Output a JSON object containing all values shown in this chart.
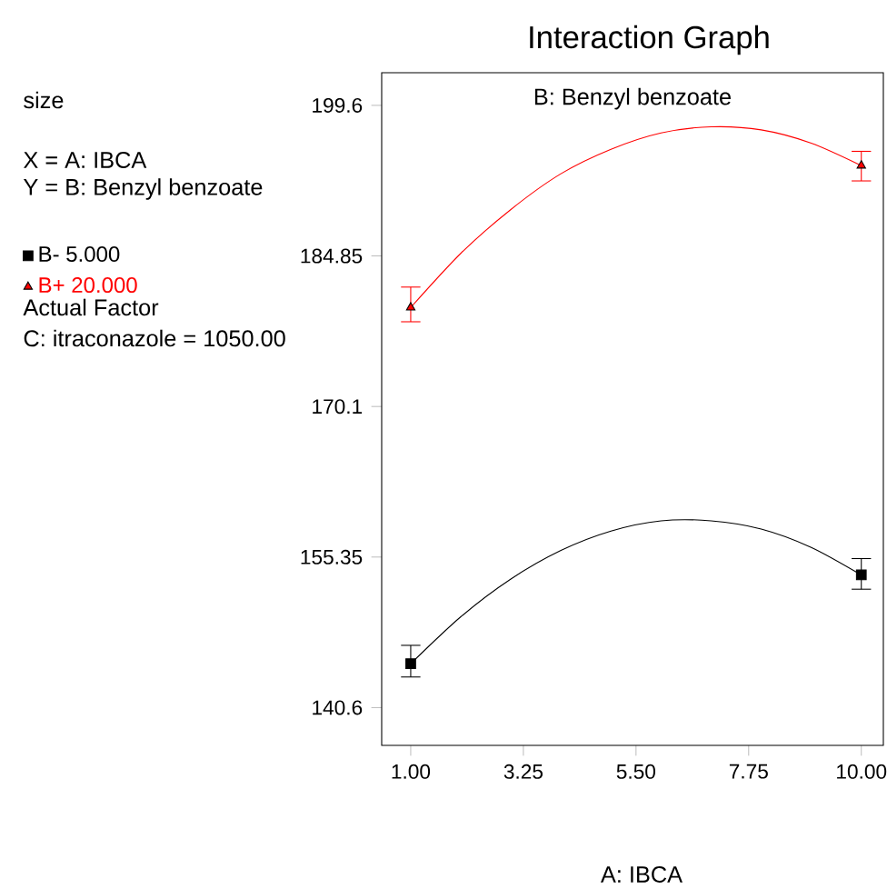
{
  "chart_data": {
    "type": "scatter",
    "title": "Interaction Graph",
    "subtitle": "B: Benzyl benzoate",
    "xlabel": "A: IBCA",
    "xlim": [
      0.42,
      10.44
    ],
    "ylim": [
      136.9,
      202.8
    ],
    "xticks": [
      {
        "value": 1,
        "label": "1.00"
      },
      {
        "value": 3.25,
        "label": "3.25"
      },
      {
        "value": 5.5,
        "label": "5.50"
      },
      {
        "value": 7.75,
        "label": "7.75"
      },
      {
        "value": 10,
        "label": "10.00"
      }
    ],
    "yticks": [
      140.6,
      155.35,
      170.1,
      184.85,
      199.6
    ],
    "legend": "left",
    "annotations": [
      "size",
      "X = A: IBCA",
      "Y = B: Benzyl benzoate",
      "Actual Factor",
      "C: itraconazole = 1050.00"
    ],
    "series": [
      {
        "type": "line",
        "color": "#000000",
        "x": [
          1,
          2,
          3,
          4,
          5,
          6,
          7,
          8,
          9,
          10
        ],
        "values": [
          144.9,
          149.5,
          153.2,
          156.0,
          157.9,
          158.9,
          158.9,
          158.1,
          156.3,
          153.6
        ]
      },
      {
        "type": "line",
        "color": "#ff0000",
        "x": [
          1,
          2,
          3,
          4,
          5,
          6,
          7,
          8,
          9,
          10
        ],
        "values": [
          179.8,
          185.1,
          189.4,
          192.9,
          195.3,
          196.9,
          197.5,
          197.2,
          195.9,
          193.7
        ]
      },
      {
        "name": "B- 5.000",
        "color": "#000000",
        "marker": "square",
        "x": [
          1,
          10
        ],
        "values": [
          144.9,
          153.6
        ],
        "errors": [
          [
            143.6,
            146.7
          ],
          [
            152.2,
            155.2
          ]
        ]
      },
      {
        "name": "B+ 20.000",
        "color": "#ff0000",
        "marker": "triangle",
        "x": [
          1,
          10
        ],
        "values": [
          179.8,
          193.7
        ],
        "errors": [
          [
            178.4,
            181.8
          ],
          [
            192.2,
            195.1
          ]
        ]
      }
    ]
  }
}
